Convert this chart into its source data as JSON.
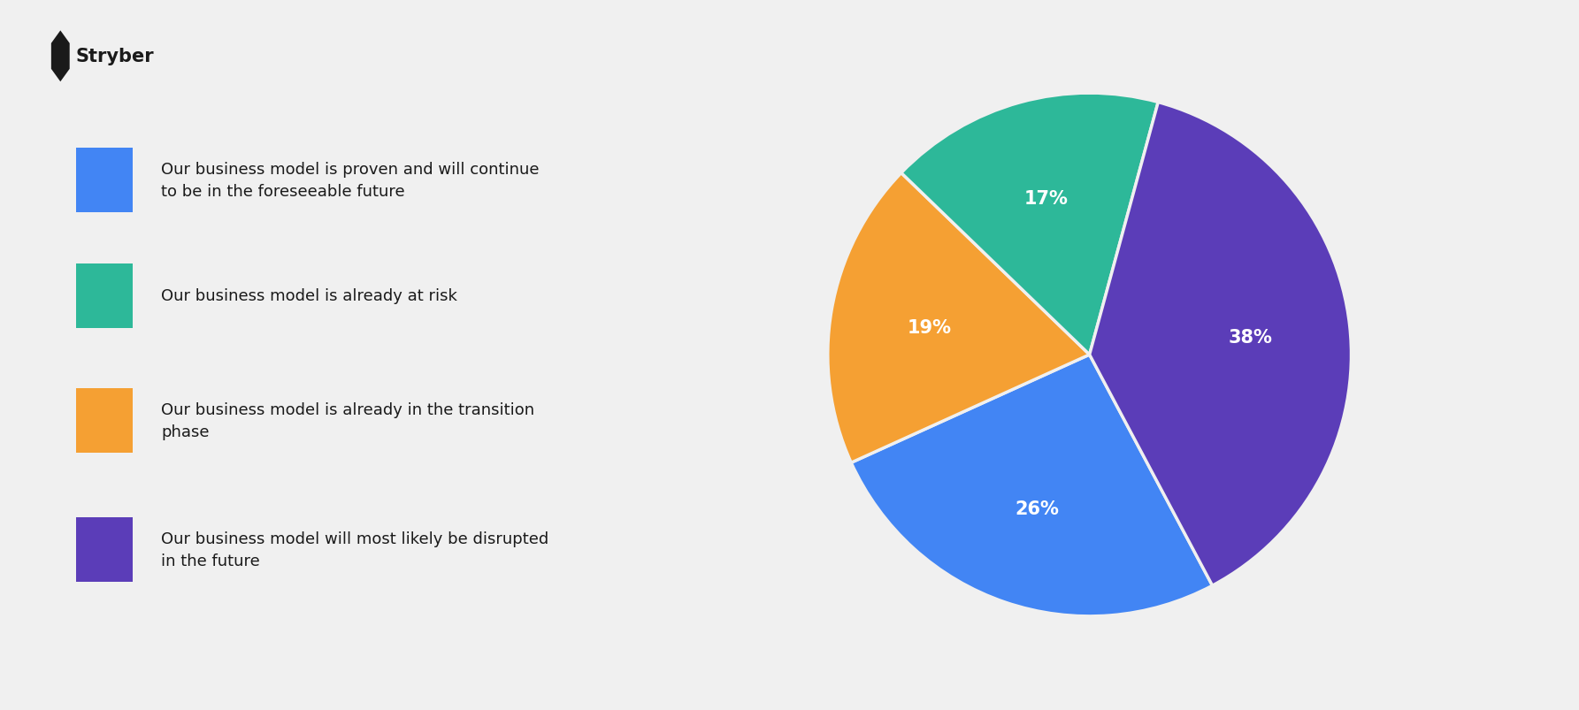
{
  "slices": [
    26,
    19,
    17,
    38
  ],
  "colors": [
    "#4285f4",
    "#f5a033",
    "#2db899",
    "#5b3db8"
  ],
  "labels": [
    "26%",
    "19%",
    "17%",
    "38%"
  ],
  "legend_labels": [
    "Our business model is proven and will continue\nto be in the foreseeable future",
    "Our business model is already at risk",
    "Our business model is already in the transition\nphase",
    "Our business model will most likely be disrupted\nin the future"
  ],
  "legend_colors": [
    "#4285f4",
    "#2db899",
    "#f5a033",
    "#5b3db8"
  ],
  "background_color": "#f0f0f0",
  "text_color": "#ffffff",
  "label_fontsize": 15,
  "legend_fontsize": 13,
  "start_angle": -62
}
